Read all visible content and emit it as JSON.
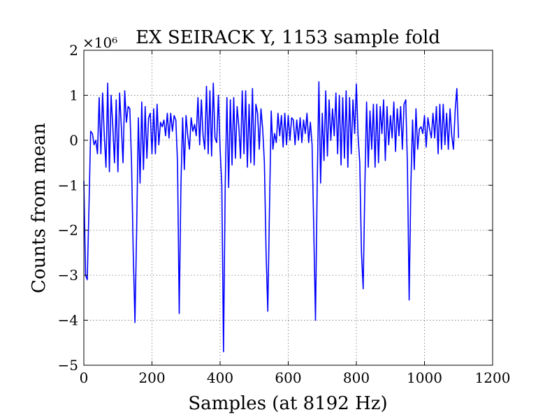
{
  "chart_data": {
    "type": "line",
    "title": "EX SEIRACK Y, 1153 sample fold",
    "xlabel": "Samples (at 8192 Hz)",
    "ylabel": "Counts from mean",
    "y_multiplier_label": "×10⁶",
    "xlim": [
      0,
      1200
    ],
    "ylim": [
      -5,
      2
    ],
    "xticks": [
      0,
      200,
      400,
      600,
      800,
      1000,
      1200
    ],
    "yticks": [
      -5,
      -4,
      -3,
      -2,
      -1,
      0,
      1,
      2
    ],
    "xtick_labels": [
      "0",
      "200",
      "400",
      "600",
      "800",
      "1000",
      "1200"
    ],
    "ytick_labels": [
      "−5",
      "−4",
      "−3",
      "−2",
      "−1",
      "0",
      "1",
      "2"
    ],
    "grid": true,
    "series": [
      {
        "color": "#0000ff",
        "points": [
          [
            0,
            -0.9
          ],
          [
            5,
            -3.0
          ],
          [
            10,
            -3.1
          ],
          [
            15,
            -1.5
          ],
          [
            20,
            0.2
          ],
          [
            25,
            0.15
          ],
          [
            30,
            -0.1
          ],
          [
            35,
            0.0
          ],
          [
            40,
            -0.3
          ],
          [
            45,
            0.95
          ],
          [
            50,
            -0.3
          ],
          [
            55,
            1.05
          ],
          [
            60,
            0.1
          ],
          [
            65,
            -0.6
          ],
          [
            70,
            1.27
          ],
          [
            75,
            -0.7
          ],
          [
            80,
            1.0
          ],
          [
            85,
            0.3
          ],
          [
            90,
            -0.5
          ],
          [
            95,
            0.9
          ],
          [
            100,
            -0.7
          ],
          [
            105,
            1.05
          ],
          [
            110,
            0.3
          ],
          [
            115,
            -0.5
          ],
          [
            120,
            1.1
          ],
          [
            125,
            0.4
          ],
          [
            130,
            0.75
          ],
          [
            135,
            0.7
          ],
          [
            140,
            -0.5
          ],
          [
            145,
            -2.5
          ],
          [
            150,
            -4.05
          ],
          [
            155,
            -2.0
          ],
          [
            160,
            0.5
          ],
          [
            165,
            -0.95
          ],
          [
            170,
            0.85
          ],
          [
            175,
            -0.65
          ],
          [
            180,
            0.75
          ],
          [
            185,
            -0.4
          ],
          [
            190,
            0.5
          ],
          [
            195,
            0.6
          ],
          [
            200,
            -0.3
          ],
          [
            205,
            0.7
          ],
          [
            210,
            -0.3
          ],
          [
            215,
            0.8
          ],
          [
            220,
            -0.1
          ],
          [
            225,
            0.4
          ],
          [
            230,
            0.3
          ],
          [
            235,
            0.45
          ],
          [
            240,
            0.1
          ],
          [
            245,
            0.6
          ],
          [
            250,
            0.05
          ],
          [
            255,
            0.6
          ],
          [
            260,
            0.2
          ],
          [
            265,
            0.55
          ],
          [
            270,
            0.45
          ],
          [
            275,
            -0.5
          ],
          [
            280,
            -3.85
          ],
          [
            285,
            -1.0
          ],
          [
            290,
            0.5
          ],
          [
            295,
            -0.65
          ],
          [
            300,
            0.55
          ],
          [
            305,
            0.1
          ],
          [
            310,
            -0.2
          ],
          [
            315,
            0.5
          ],
          [
            320,
            0.2
          ],
          [
            325,
            0.35
          ],
          [
            330,
            0.1
          ],
          [
            335,
            0.95
          ],
          [
            340,
            -0.1
          ],
          [
            345,
            0.9
          ],
          [
            350,
            0.1
          ],
          [
            355,
            -0.2
          ],
          [
            360,
            1.2
          ],
          [
            365,
            -0.3
          ],
          [
            370,
            1.1
          ],
          [
            375,
            -0.35
          ],
          [
            380,
            1.27
          ],
          [
            385,
            0.05
          ],
          [
            390,
            -0.05
          ],
          [
            395,
            1.0
          ],
          [
            400,
            -0.2
          ],
          [
            405,
            -1.0
          ],
          [
            410,
            -4.7
          ],
          [
            415,
            -1.0
          ],
          [
            420,
            0.95
          ],
          [
            425,
            -1.05
          ],
          [
            430,
            0.9
          ],
          [
            435,
            -0.55
          ],
          [
            440,
            0.95
          ],
          [
            445,
            -0.4
          ],
          [
            450,
            0.75
          ],
          [
            455,
            0.3
          ],
          [
            460,
            -0.4
          ],
          [
            465,
            1.1
          ],
          [
            470,
            -0.3
          ],
          [
            475,
            1.1
          ],
          [
            480,
            -0.6
          ],
          [
            485,
            0.8
          ],
          [
            490,
            -0.5
          ],
          [
            495,
            1.15
          ],
          [
            500,
            -0.55
          ],
          [
            505,
            0.8
          ],
          [
            510,
            0.6
          ],
          [
            515,
            -0.2
          ],
          [
            520,
            0.7
          ],
          [
            525,
            0.25
          ],
          [
            530,
            -0.5
          ],
          [
            535,
            -2.5
          ],
          [
            540,
            -3.8
          ],
          [
            545,
            -1.5
          ],
          [
            550,
            0.65
          ],
          [
            555,
            -0.2
          ],
          [
            560,
            0.15
          ],
          [
            565,
            -0.05
          ],
          [
            570,
            0.6
          ],
          [
            575,
            0.1
          ],
          [
            580,
            0.55
          ],
          [
            585,
            -0.15
          ],
          [
            590,
            0.6
          ],
          [
            595,
            -0.1
          ],
          [
            600,
            0.55
          ],
          [
            605,
            0.0
          ],
          [
            610,
            0.5
          ],
          [
            615,
            0.45
          ],
          [
            620,
            -0.1
          ],
          [
            625,
            0.45
          ],
          [
            630,
            0.0
          ],
          [
            635,
            0.5
          ],
          [
            640,
            -0.05
          ],
          [
            645,
            0.45
          ],
          [
            650,
            0.15
          ],
          [
            655,
            0.6
          ],
          [
            660,
            -0.05
          ],
          [
            665,
            0.4
          ],
          [
            670,
            -0.1
          ],
          [
            675,
            -2.0
          ],
          [
            680,
            -4.0
          ],
          [
            685,
            -1.0
          ],
          [
            690,
            1.3
          ],
          [
            695,
            -0.95
          ],
          [
            700,
            0.6
          ],
          [
            705,
            -0.45
          ],
          [
            710,
            1.1
          ],
          [
            715,
            -0.35
          ],
          [
            720,
            0.9
          ],
          [
            725,
            0.0
          ],
          [
            730,
            0.7
          ],
          [
            735,
            0.1
          ],
          [
            740,
            1.05
          ],
          [
            745,
            -0.3
          ],
          [
            750,
            1.0
          ],
          [
            755,
            -0.55
          ],
          [
            760,
            0.95
          ],
          [
            765,
            -0.4
          ],
          [
            770,
            1.1
          ],
          [
            775,
            -0.6
          ],
          [
            780,
            0.95
          ],
          [
            785,
            -0.3
          ],
          [
            790,
            0.9
          ],
          [
            795,
            0.15
          ],
          [
            800,
            1.25
          ],
          [
            805,
            0.1
          ],
          [
            810,
            -0.5
          ],
          [
            815,
            -2.5
          ],
          [
            820,
            -3.3
          ],
          [
            825,
            -1.0
          ],
          [
            830,
            0.85
          ],
          [
            835,
            -0.6
          ],
          [
            840,
            0.65
          ],
          [
            845,
            -0.2
          ],
          [
            850,
            0.8
          ],
          [
            855,
            -0.6
          ],
          [
            860,
            0.8
          ],
          [
            865,
            -0.5
          ],
          [
            870,
            0.75
          ],
          [
            875,
            0.15
          ],
          [
            880,
            0.9
          ],
          [
            885,
            -0.45
          ],
          [
            890,
            0.75
          ],
          [
            895,
            -0.1
          ],
          [
            900,
            0.55
          ],
          [
            905,
            0.05
          ],
          [
            910,
            0.85
          ],
          [
            915,
            -0.25
          ],
          [
            920,
            0.7
          ],
          [
            925,
            0.1
          ],
          [
            930,
            0.75
          ],
          [
            935,
            -0.2
          ],
          [
            940,
            0.8
          ],
          [
            945,
            0.9
          ],
          [
            950,
            -0.6
          ],
          [
            955,
            -3.55
          ],
          [
            960,
            -1.0
          ],
          [
            965,
            0.45
          ],
          [
            970,
            -0.65
          ],
          [
            975,
            0.7
          ],
          [
            980,
            -0.2
          ],
          [
            985,
            0.25
          ],
          [
            990,
            0.3
          ],
          [
            995,
            0.15
          ],
          [
            1000,
            0.55
          ],
          [
            1005,
            -0.15
          ],
          [
            1010,
            0.5
          ],
          [
            1015,
            0.25
          ],
          [
            1020,
            0.05
          ],
          [
            1025,
            0.6
          ],
          [
            1030,
            0.05
          ],
          [
            1035,
            0.75
          ],
          [
            1040,
            -0.3
          ],
          [
            1045,
            0.8
          ],
          [
            1050,
            -0.2
          ],
          [
            1055,
            0.8
          ],
          [
            1060,
            -0.1
          ],
          [
            1065,
            0.6
          ],
          [
            1070,
            -0.2
          ],
          [
            1075,
            0.7
          ],
          [
            1080,
            0.1
          ],
          [
            1085,
            -0.2
          ],
          [
            1090,
            0.65
          ],
          [
            1095,
            1.15
          ],
          [
            1100,
            0.05
          ]
        ]
      }
    ]
  }
}
